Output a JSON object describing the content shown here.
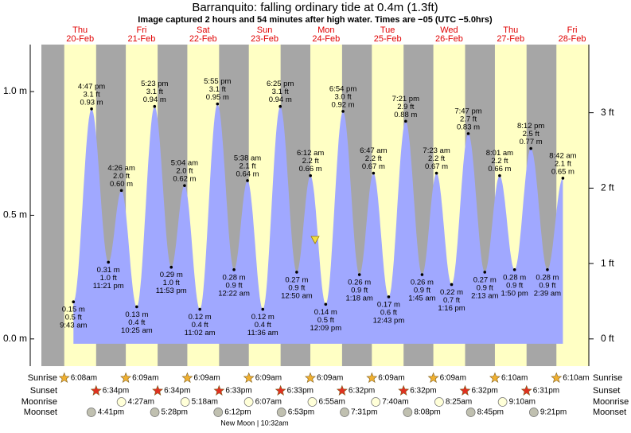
{
  "chart_data": {
    "type": "tide",
    "title": "Barranquito: falling  ordinary tide at 0.4m (1.3ft)",
    "subtitle": "Image captured 2 hours and 54 minutes after high water. Times are −05 (UTC −5.0hrs)",
    "ylim": [
      -0.11,
      1.19
    ],
    "yticks": [
      {
        "value": 0,
        "label": "0.0 m"
      },
      {
        "value": 0.5,
        "label": "0.5 m"
      },
      {
        "value": 1,
        "label": "1.0 m"
      }
    ],
    "y2lim": [
      -0.361,
      3.904
    ],
    "y2ticks": [
      {
        "value": 0,
        "label": "0 ft"
      },
      {
        "value": 1,
        "label": "1 ft"
      },
      {
        "value": 2,
        "label": "2 ft"
      },
      {
        "value": 3,
        "label": "3 ft"
      }
    ],
    "row_labels": [
      "Sunrise",
      "Sunset",
      "Moonrise",
      "Moonset"
    ],
    "moon_phase": "New Moon | 10:32am",
    "days": [
      {
        "weekday": "Thu",
        "date": "20-Feb",
        "sunrise": "6:08am",
        "sunset": "6:34pm",
        "moonset": "4:41pm",
        "tides": [
          {
            "time": "9:43 am",
            "height": 0.15,
            "height_label": "0.15 m",
            "feet": 0.5,
            "feet_label": "0.5 ft"
          },
          {
            "time": "4:47 pm",
            "height": 0.93,
            "height_label": "0.93 m",
            "feet": 3.1,
            "feet_label": "3.1 ft"
          },
          {
            "time": "11:21 pm",
            "height": 0.31,
            "height_label": "0.31 m",
            "feet": 1.0,
            "feet_label": "1.0 ft"
          }
        ]
      },
      {
        "weekday": "Fri",
        "date": "21-Feb",
        "sunrise": "6:09am",
        "sunset": "6:34pm",
        "moonrise": "4:27am",
        "moonset": "5:28pm",
        "tides": [
          {
            "time": "4:26 am",
            "height": 0.6,
            "height_label": "0.60 m",
            "feet": 2.0,
            "feet_label": "2.0 ft"
          },
          {
            "time": "10:25 am",
            "height": 0.13,
            "height_label": "0.13 m",
            "feet": 0.4,
            "feet_label": "0.4 ft"
          },
          {
            "time": "5:23 pm",
            "height": 0.94,
            "height_label": "0.94 m",
            "feet": 3.1,
            "feet_label": "3.1 ft"
          },
          {
            "time": "11:53 pm",
            "height": 0.29,
            "height_label": "0.29 m",
            "feet": 1.0,
            "feet_label": "1.0 ft"
          }
        ]
      },
      {
        "weekday": "Sat",
        "date": "22-Feb",
        "sunrise": "6:09am",
        "sunset": "6:33pm",
        "moonrise": "5:18am",
        "moonset": "6:12pm",
        "tides": [
          {
            "time": "5:04 am",
            "height": 0.62,
            "height_label": "0.62 m",
            "feet": 2.0,
            "feet_label": "2.0 ft"
          },
          {
            "time": "11:02 am",
            "height": 0.12,
            "height_label": "0.12 m",
            "feet": 0.4,
            "feet_label": "0.4 ft"
          },
          {
            "time": "5:55 pm",
            "height": 0.95,
            "height_label": "0.95 m",
            "feet": 3.1,
            "feet_label": "3.1 ft"
          }
        ]
      },
      {
        "weekday": "Sun",
        "date": "23-Feb",
        "sunrise": "6:09am",
        "sunset": "6:33pm",
        "moonrise": "6:07am",
        "moonset": "6:53pm",
        "tides": [
          {
            "time": "12:22 am",
            "height": 0.28,
            "height_label": "0.28 m",
            "feet": 0.9,
            "feet_label": "0.9 ft"
          },
          {
            "time": "5:38 am",
            "height": 0.64,
            "height_label": "0.64 m",
            "feet": 2.1,
            "feet_label": "2.1 ft"
          },
          {
            "time": "11:36 am",
            "height": 0.12,
            "height_label": "0.12 m",
            "feet": 0.4,
            "feet_label": "0.4 ft"
          },
          {
            "time": "6:25 pm",
            "height": 0.94,
            "height_label": "0.94 m",
            "feet": 3.1,
            "feet_label": "3.1 ft"
          }
        ]
      },
      {
        "weekday": "Mon",
        "date": "24-Feb",
        "sunrise": "6:09am",
        "sunset": "6:32pm",
        "moonrise": "6:55am",
        "moonset": "7:31pm",
        "tides": [
          {
            "time": "12:50 am",
            "height": 0.27,
            "height_label": "0.27 m",
            "feet": 0.9,
            "feet_label": "0.9 ft"
          },
          {
            "time": "6:12 am",
            "height": 0.66,
            "height_label": "0.66 m",
            "feet": 2.2,
            "feet_label": "2.2 ft"
          },
          {
            "time": "12:09 pm",
            "height": 0.14,
            "height_label": "0.14 m",
            "feet": 0.5,
            "feet_label": "0.5 ft"
          },
          {
            "time": "6:54 pm",
            "height": 0.92,
            "height_label": "0.92 m",
            "feet": 3.0,
            "feet_label": "3.0 ft"
          }
        ]
      },
      {
        "weekday": "Tue",
        "date": "25-Feb",
        "sunrise": "6:09am",
        "sunset": "6:32pm",
        "moonrise": "7:40am",
        "moonset": "8:08pm",
        "tides": [
          {
            "time": "1:18 am",
            "height": 0.26,
            "height_label": "0.26 m",
            "feet": 0.9,
            "feet_label": "0.9 ft"
          },
          {
            "time": "6:47 am",
            "height": 0.67,
            "height_label": "0.67 m",
            "feet": 2.2,
            "feet_label": "2.2 ft"
          },
          {
            "time": "12:43 pm",
            "height": 0.17,
            "height_label": "0.17 m",
            "feet": 0.6,
            "feet_label": "0.6 ft"
          },
          {
            "time": "7:21 pm",
            "height": 0.88,
            "height_label": "0.88 m",
            "feet": 2.9,
            "feet_label": "2.9 ft"
          }
        ]
      },
      {
        "weekday": "Wed",
        "date": "26-Feb",
        "sunrise": "6:09am",
        "sunset": "6:32pm",
        "moonrise": "8:25am",
        "moonset": "8:45pm",
        "tides": [
          {
            "time": "1:45 am",
            "height": 0.26,
            "height_label": "0.26 m",
            "feet": 0.9,
            "feet_label": "0.9 ft"
          },
          {
            "time": "7:23 am",
            "height": 0.67,
            "height_label": "0.67 m",
            "feet": 2.2,
            "feet_label": "2.2 ft"
          },
          {
            "time": "1:16 pm",
            "height": 0.22,
            "height_label": "0.22 m",
            "feet": 0.7,
            "feet_label": "0.7 ft"
          },
          {
            "time": "7:47 pm",
            "height": 0.83,
            "height_label": "0.83 m",
            "feet": 2.7,
            "feet_label": "2.7 ft"
          }
        ]
      },
      {
        "weekday": "Thu",
        "date": "27-Feb",
        "sunrise": "6:10am",
        "sunset": "6:31pm",
        "moonrise": "9:10am",
        "moonset": "9:21pm",
        "tides": [
          {
            "time": "2:13 am",
            "height": 0.27,
            "height_label": "0.27 m",
            "feet": 0.9,
            "feet_label": "0.9 ft"
          },
          {
            "time": "8:01 am",
            "height": 0.66,
            "height_label": "0.66 m",
            "feet": 2.2,
            "feet_label": "2.2 ft"
          },
          {
            "time": "1:50 pm",
            "height": 0.28,
            "height_label": "0.28 m",
            "feet": 0.9,
            "feet_label": "0.9 ft"
          },
          {
            "time": "8:12 pm",
            "height": 0.77,
            "height_label": "0.77 m",
            "feet": 2.5,
            "feet_label": "2.5 ft"
          }
        ]
      },
      {
        "weekday": "Fri",
        "date": "28-Feb",
        "sunrise": "6:10am",
        "tides": [
          {
            "time": "2:39 am",
            "height": 0.28,
            "height_label": "0.28 m",
            "feet": 0.9,
            "feet_label": "0.9 ft"
          },
          {
            "time": "8:42 am",
            "height": 0.65,
            "height_label": "0.65 m",
            "feet": 2.1,
            "feet_label": "2.1 ft"
          }
        ]
      }
    ]
  }
}
